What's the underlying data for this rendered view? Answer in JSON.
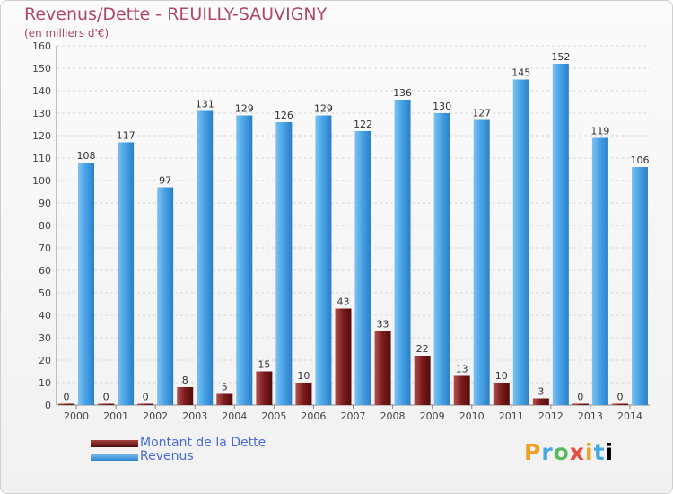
{
  "header": {
    "title": "Revenus/Dette - REUILLY-SAUVIGNY",
    "subtitle": "(en milliers d'€)"
  },
  "chart_data": {
    "type": "bar",
    "categories": [
      "2000",
      "2001",
      "2002",
      "2003",
      "2004",
      "2005",
      "2006",
      "2007",
      "2008",
      "2009",
      "2010",
      "2011",
      "2012",
      "2013",
      "2014"
    ],
    "series": [
      {
        "name": "Montant de la Dette",
        "color": "#7a1b1b",
        "values": [
          0,
          0,
          0,
          8,
          5,
          15,
          10,
          43,
          33,
          22,
          13,
          10,
          3,
          0,
          0
        ]
      },
      {
        "name": "Revenus",
        "color": "#4aa3e6",
        "values": [
          108,
          117,
          97,
          131,
          129,
          126,
          129,
          122,
          136,
          130,
          127,
          145,
          152,
          119,
          106
        ]
      }
    ],
    "ylim": [
      0,
      160
    ],
    "yticks": [
      0,
      10,
      20,
      30,
      40,
      50,
      60,
      70,
      80,
      90,
      100,
      110,
      120,
      130,
      140,
      150,
      160
    ],
    "grid": true,
    "legend": "bottom-left"
  },
  "legend": {
    "items": [
      {
        "label": "Montant de la Dette"
      },
      {
        "label": "Revenus"
      }
    ]
  },
  "brand": {
    "letters": [
      "P",
      "r",
      "o",
      "x",
      "i",
      "t",
      "i"
    ]
  }
}
